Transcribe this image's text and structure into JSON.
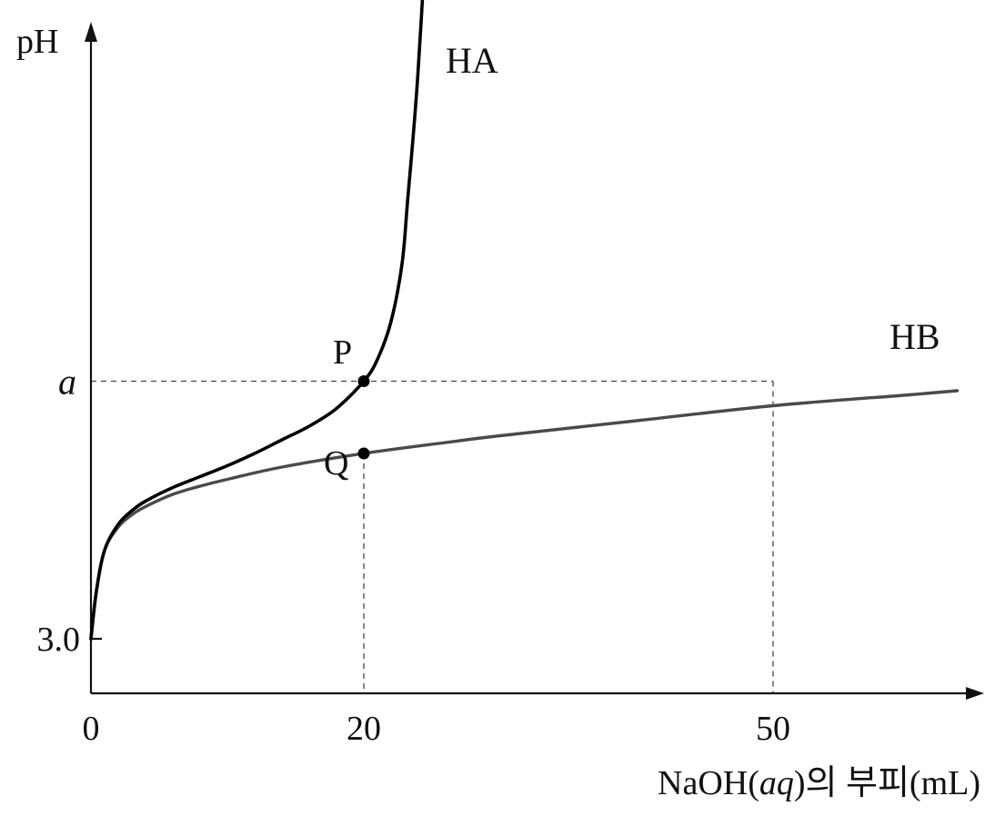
{
  "chart_data": {
    "type": "line",
    "ylabel": "pH",
    "xlabel_main": "NaOH(",
    "xlabel_ital": "aq",
    "xlabel_tail": ")의 부피(mL)",
    "x_ticks": [
      {
        "value": 0,
        "label": "0"
      },
      {
        "value": 20,
        "label": "20"
      },
      {
        "value": 50,
        "label": "50"
      }
    ],
    "y_ticks": [
      {
        "value": 3.0,
        "label": "3.0"
      },
      {
        "value": "a",
        "label": "a"
      }
    ],
    "xlim": [
      0,
      64
    ],
    "colors": {
      "HA": "#000000",
      "HB": "#4a4a4a"
    },
    "series": [
      {
        "name": "HA",
        "x": [
          0,
          0.4,
          1.0,
          2,
          3,
          4,
          6,
          8,
          10,
          12,
          14,
          16,
          18,
          20,
          21,
          22,
          22.8,
          23.2,
          24,
          24.6,
          24.9,
          25
        ],
        "y": [
          3.0,
          3.35,
          3.65,
          3.84,
          3.94,
          4.01,
          4.11,
          4.19,
          4.27,
          4.36,
          4.46,
          4.56,
          4.69,
          4.89,
          5.05,
          5.33,
          5.75,
          6.2,
          7.2,
          8.5,
          11.0,
          12.8
        ]
      },
      {
        "name": "HB",
        "x": [
          0,
          0.4,
          1.0,
          2,
          3,
          4,
          6,
          8,
          10,
          14,
          20,
          26,
          30,
          40,
          50,
          60,
          63.5
        ],
        "y": [
          3.0,
          3.35,
          3.65,
          3.82,
          3.91,
          3.97,
          4.06,
          4.12,
          4.17,
          4.26,
          4.36,
          4.44,
          4.49,
          4.6,
          4.71,
          4.79,
          4.82
        ]
      }
    ],
    "points": [
      {
        "label": "P",
        "x": 20,
        "y": 4.89
      },
      {
        "label": "Q",
        "x": 20,
        "y": 4.36
      }
    ],
    "a_value": 4.89,
    "guide_lines": [
      {
        "from": "y=a",
        "to_x": 50
      },
      {
        "vertical_at_x": 20
      },
      {
        "vertical_at_x": 50
      }
    ]
  }
}
